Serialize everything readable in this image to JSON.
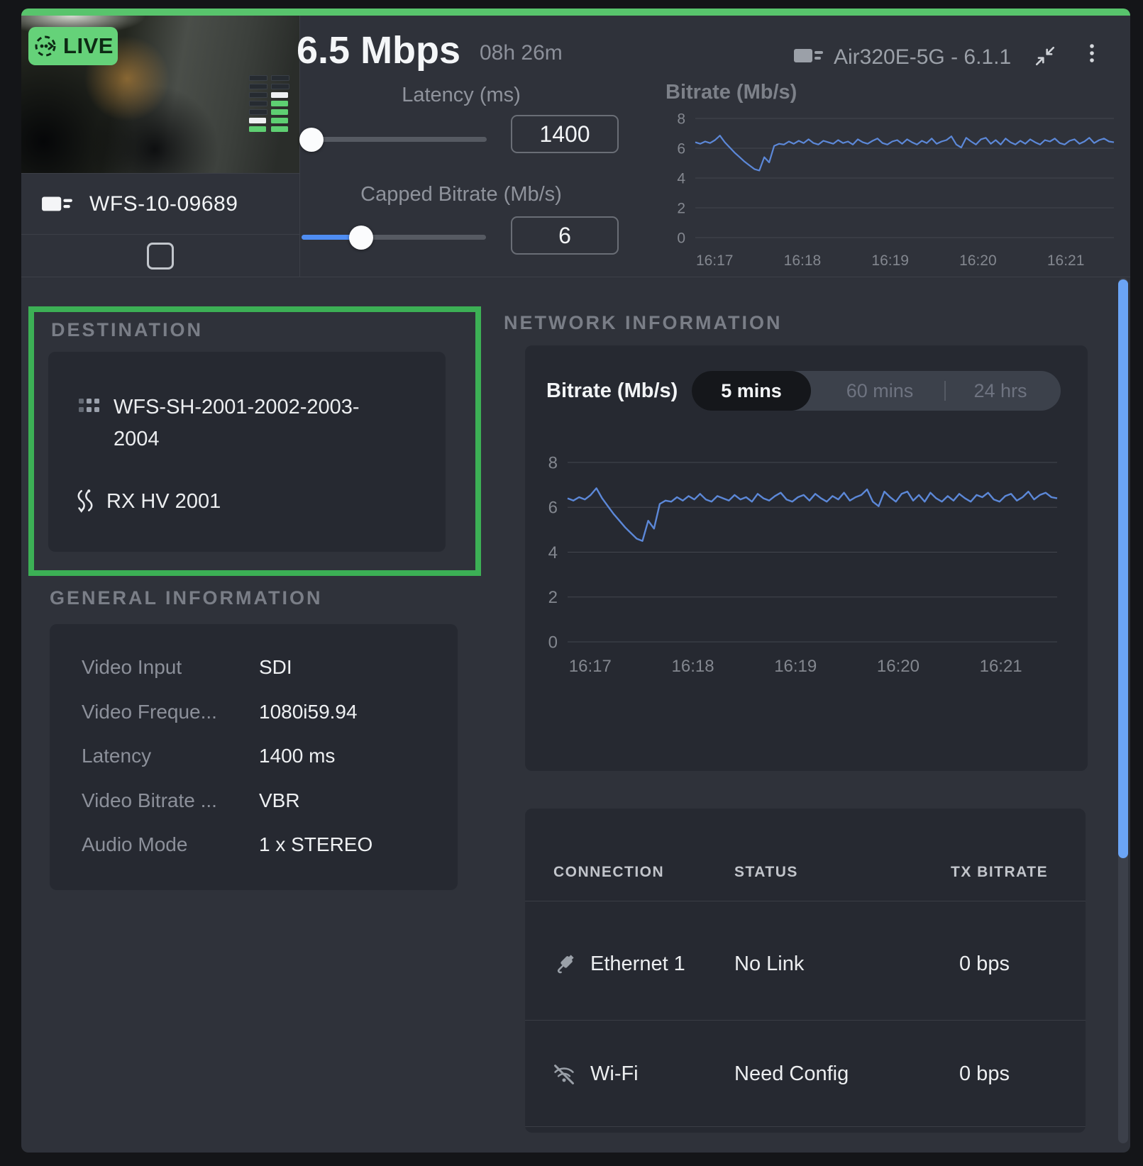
{
  "header": {
    "live_label": "LIVE",
    "device_name": "WFS-10-09689",
    "bitrate_value": "6.5 Mbps",
    "uptime": "08h 26m",
    "modem_label": "Air320E-5G - 6.1.1",
    "mini_chart_title": "Bitrate (Mb/s)",
    "latency": {
      "label": "Latency (ms)",
      "value": "1400"
    },
    "capped_bitrate": {
      "label": "Capped Bitrate (Mb/s)",
      "value": "6"
    }
  },
  "signal_meter": {
    "columns": [
      [
        "dim",
        "dim",
        "dim",
        "dim",
        "dim",
        "white",
        "green"
      ],
      [
        "dim",
        "dim",
        "white",
        "green",
        "green",
        "green",
        "green"
      ]
    ]
  },
  "destination": {
    "title": "DESTINATION",
    "channel": "WFS-SH-2001-2002-2003-2004",
    "receiver": "RX HV 2001"
  },
  "general_info": {
    "title": "GENERAL INFORMATION",
    "rows": [
      {
        "label": "Video Input",
        "value": "SDI"
      },
      {
        "label": "Video Freque...",
        "value": "1080i59.94"
      },
      {
        "label": "Latency",
        "value": "1400 ms"
      },
      {
        "label": "Video Bitrate ...",
        "value": "VBR"
      },
      {
        "label": "Audio Mode",
        "value": "1 x STEREO"
      }
    ]
  },
  "network_info": {
    "title": "NETWORK INFORMATION",
    "chart_label": "Bitrate (Mb/s)",
    "tabs": [
      {
        "label": "5 mins",
        "active": true
      },
      {
        "label": "60 mins",
        "active": false
      },
      {
        "label": "24 hrs",
        "active": false
      }
    ]
  },
  "connections": {
    "columns": [
      "CONNECTION",
      "STATUS",
      "TX BITRATE"
    ],
    "rows": [
      {
        "icon": "ethernet-icon",
        "name": "Ethernet 1",
        "status": "No Link",
        "tx_bitrate": "0 bps"
      },
      {
        "icon": "wifi-off-icon",
        "name": "Wi-Fi",
        "status": "Need Config",
        "tx_bitrate": "0 bps"
      }
    ]
  },
  "chart_data": {
    "type": "line",
    "title": "Bitrate (Mb/s)",
    "ylabel": "Mb/s",
    "ylim": [
      0,
      8
    ],
    "y_ticks": [
      0,
      2,
      4,
      6,
      8
    ],
    "x_ticks": [
      "16:17",
      "16:18",
      "16:19",
      "16:20",
      "16:21"
    ],
    "x_tick_minutes": [
      17,
      18,
      19,
      20,
      21
    ],
    "t0": 16.78,
    "dt": 0.0561,
    "values": [
      6.4,
      6.3,
      6.45,
      6.35,
      6.55,
      6.85,
      6.4,
      6.05,
      5.7,
      5.4,
      5.1,
      4.85,
      4.6,
      4.5,
      5.4,
      5.05,
      6.15,
      6.3,
      6.25,
      6.45,
      6.3,
      6.5,
      6.35,
      6.6,
      6.35,
      6.25,
      6.5,
      6.4,
      6.3,
      6.55,
      6.35,
      6.45,
      6.25,
      6.6,
      6.4,
      6.3,
      6.5,
      6.65,
      6.35,
      6.25,
      6.45,
      6.55,
      6.3,
      6.6,
      6.4,
      6.25,
      6.5,
      6.35,
      6.65,
      6.3,
      6.45,
      6.55,
      6.8,
      6.25,
      6.05,
      6.7,
      6.45,
      6.25,
      6.6,
      6.7,
      6.3,
      6.55,
      6.25,
      6.65,
      6.4,
      6.25,
      6.5,
      6.3,
      6.6,
      6.4,
      6.25,
      6.55,
      6.45,
      6.65,
      6.35,
      6.25,
      6.5,
      6.6,
      6.3,
      6.45,
      6.7,
      6.35,
      6.55,
      6.65,
      6.45,
      6.4
    ]
  },
  "colors": {
    "accent_green": "#58c46c",
    "live_badge_green": "#65d279",
    "destination_border_green": "#3cb055",
    "chart_line_blue": "#5c88d8",
    "slider_fill_blue": "#4f8df2",
    "scrollbar_blue": "#6ba4f5",
    "panel_bg": "#2f323a",
    "card_bg": "#262931"
  },
  "icons": [
    "live-icon",
    "signal-meter-icon",
    "transmitter-icon",
    "collapse-icon",
    "kebab-menu-icon",
    "grid-icon",
    "route-icon",
    "ethernet-icon",
    "wifi-off-icon"
  ]
}
